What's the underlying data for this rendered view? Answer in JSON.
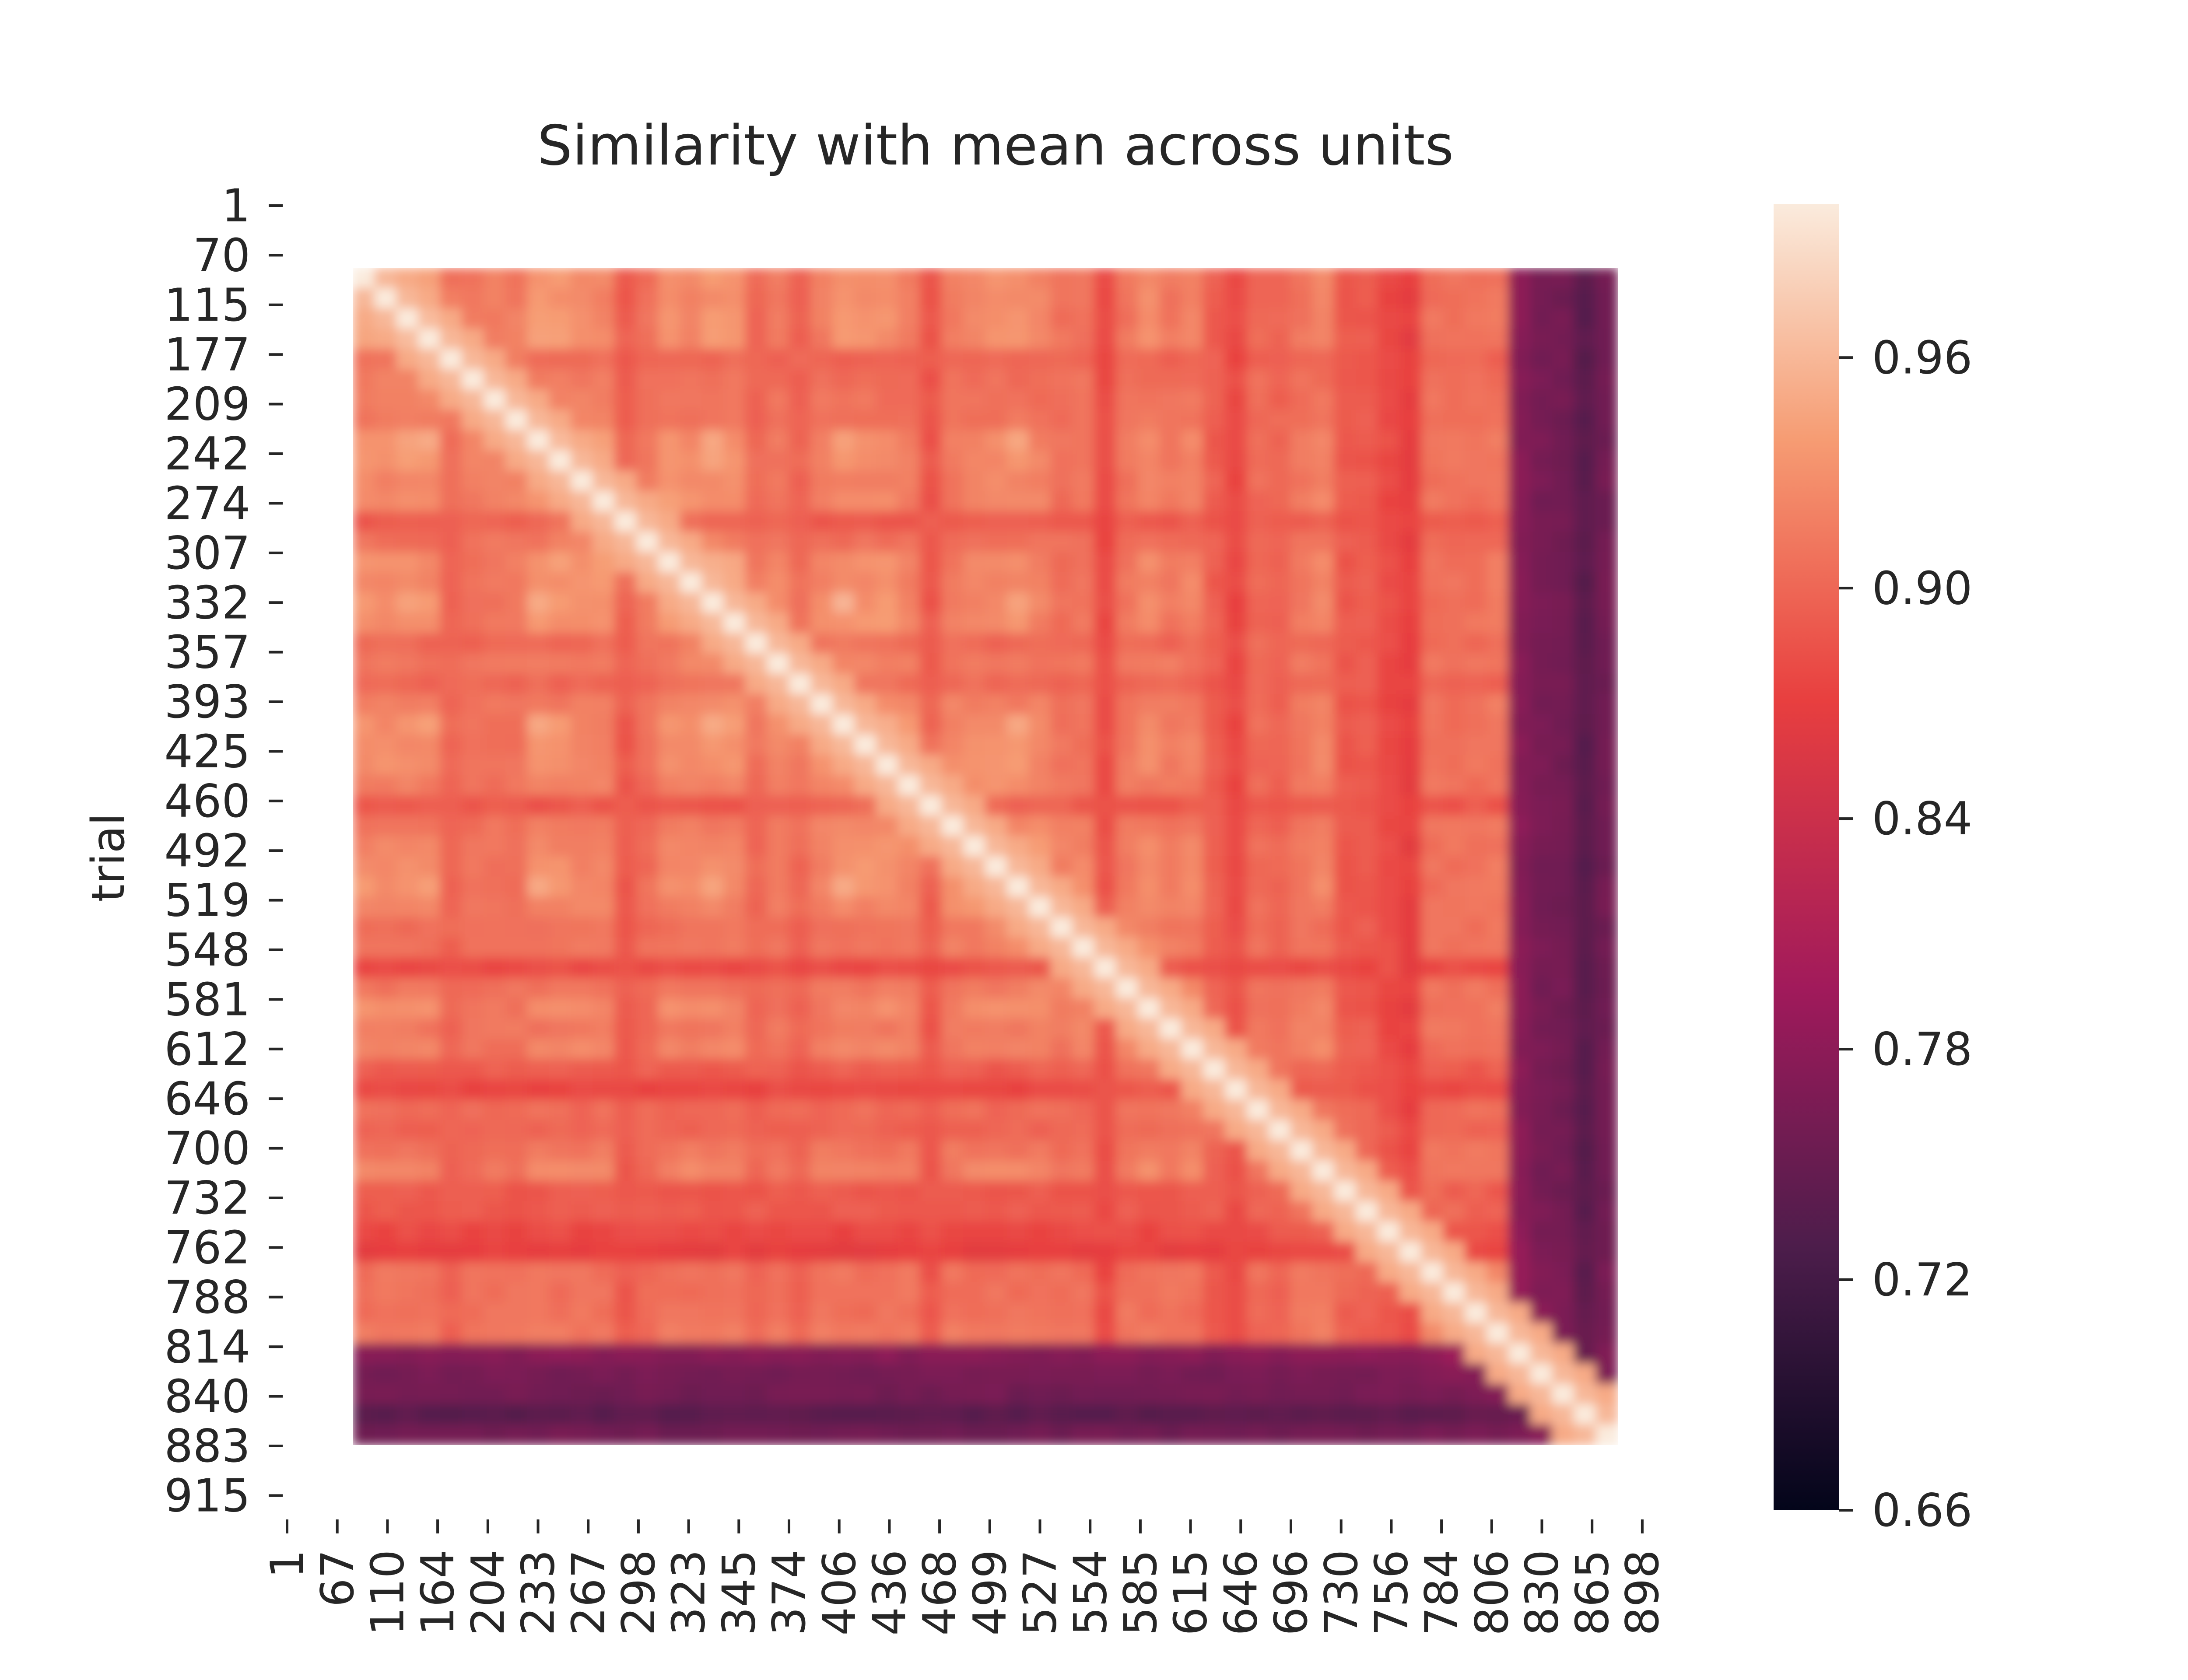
{
  "chart_data": {
    "type": "heatmap",
    "title": "Similarity with mean across units",
    "ylabel": "trial",
    "xlabel": "",
    "x_tick_labels": [
      "1",
      "67",
      "110",
      "164",
      "204",
      "233",
      "267",
      "298",
      "323",
      "345",
      "374",
      "406",
      "436",
      "468",
      "499",
      "527",
      "554",
      "585",
      "615",
      "646",
      "696",
      "730",
      "756",
      "784",
      "806",
      "830",
      "865",
      "898"
    ],
    "y_tick_labels": [
      "1",
      "70",
      "115",
      "177",
      "209",
      "242",
      "274",
      "307",
      "332",
      "357",
      "393",
      "425",
      "460",
      "492",
      "519",
      "548",
      "581",
      "612",
      "646",
      "700",
      "732",
      "762",
      "788",
      "814",
      "840",
      "883",
      "915"
    ],
    "colorbar": {
      "ticks": [
        "0.96",
        "0.90",
        "0.84",
        "0.78",
        "0.72",
        "0.66"
      ],
      "min": 0.66,
      "max": 1.0,
      "colormap": "rocket"
    },
    "colormap_stops": [
      "#03051a",
      "#4c1d4b",
      "#a11a5b",
      "#e83f3f",
      "#f69c73",
      "#faebdd"
    ],
    "matrix_description": "Symmetric trial-by-trial similarity matrix; diagonal = 1.0; typical off-diagonal values 0.88-0.96; last ~30 trials (rows/cols near 865-898) drop to ~0.66-0.75"
  }
}
